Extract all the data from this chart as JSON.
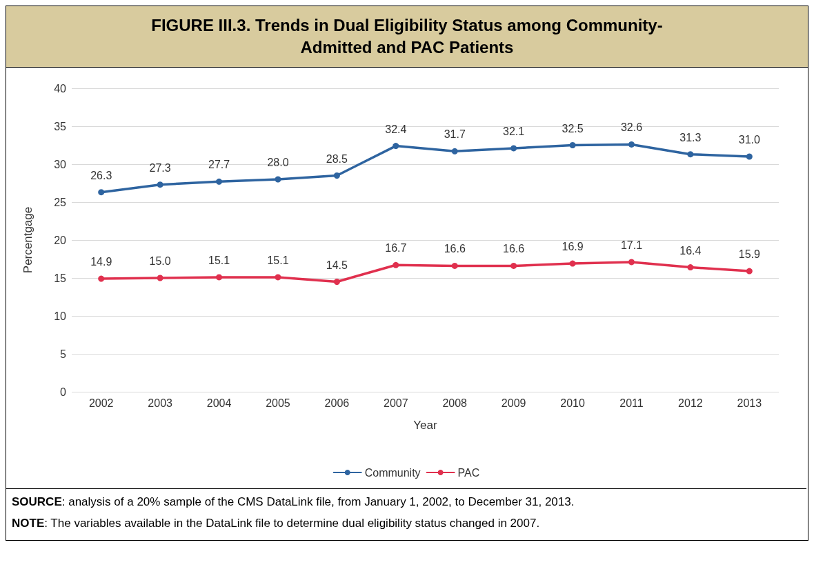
{
  "chart_data": {
    "type": "line",
    "title": "FIGURE III.3. Trends in Dual Eligibility Status among Community-Admitted and PAC Patients",
    "xlabel": "Year",
    "ylabel": "Percentgage",
    "categories": [
      "2002",
      "2003",
      "2004",
      "2005",
      "2006",
      "2007",
      "2008",
      "2009",
      "2010",
      "2011",
      "2012",
      "2013"
    ],
    "series": [
      {
        "name": "Community",
        "color": "#2e64a0",
        "values": [
          26.3,
          27.3,
          27.7,
          28.0,
          28.5,
          32.4,
          31.7,
          32.1,
          32.5,
          32.6,
          31.3,
          31.0
        ],
        "value_labels": [
          "26.3",
          "27.3",
          "27.7",
          "28.0",
          "28.5",
          "32.4",
          "31.7",
          "32.1",
          "32.5",
          "32.6",
          "31.3",
          "31.0"
        ]
      },
      {
        "name": "PAC",
        "color": "#e0304e",
        "values": [
          14.9,
          15.0,
          15.1,
          15.1,
          14.5,
          16.7,
          16.6,
          16.6,
          16.9,
          17.1,
          16.4,
          15.9
        ],
        "value_labels": [
          "14.9",
          "15.0",
          "15.1",
          "15.1",
          "14.5",
          "16.7",
          "16.6",
          "16.6",
          "16.9",
          "17.1",
          "16.4",
          "15.9"
        ]
      }
    ],
    "ylim": [
      0,
      40
    ],
    "yticks": [
      0,
      5,
      10,
      15,
      20,
      25,
      30,
      35,
      40
    ],
    "grid": "y",
    "legend": "bottom",
    "marker": "circle",
    "line_style": "solid",
    "annotations": [
      "SOURCE:  analysis of a 20% sample of the CMS DataLink file, from January 1, 2002, to December 31, 2013.",
      "NOTE:  The variables available in the DataLink file to determine dual eligibility status changed in 2007."
    ]
  }
}
